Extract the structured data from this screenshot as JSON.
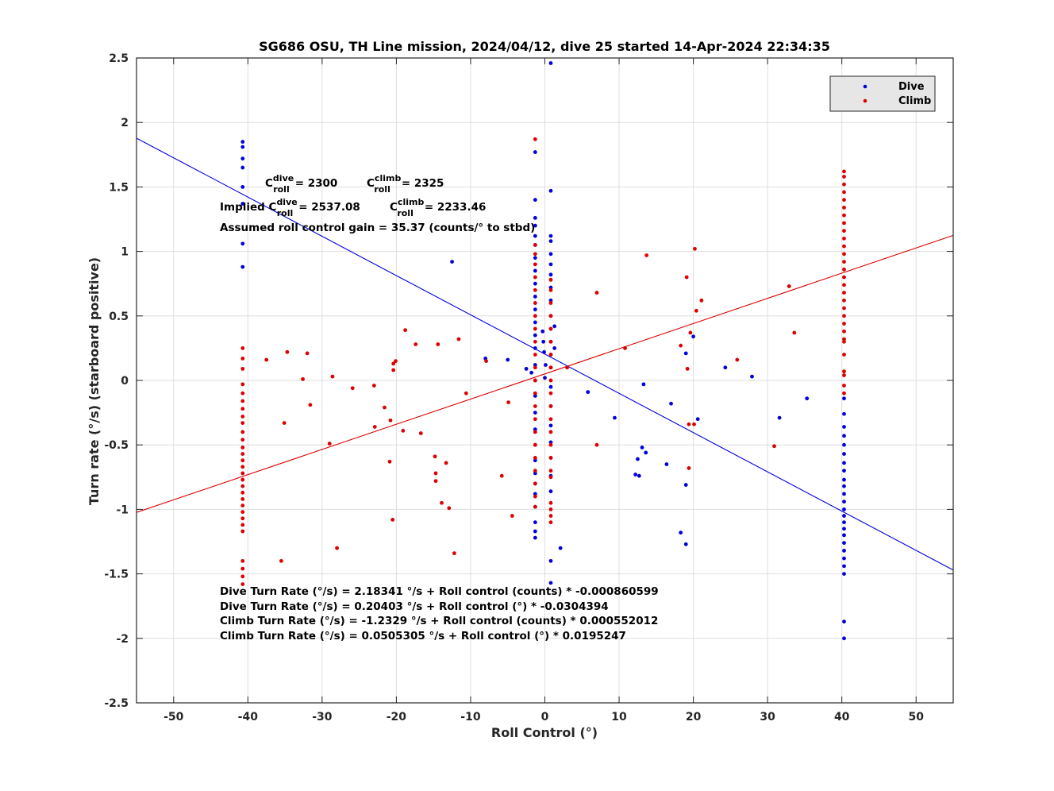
{
  "chart_data": {
    "type": "scatter",
    "title": "SG686 OSU, TH Line mission, 2024/04/12, dive 25 started 14-Apr-2024 22:34:35",
    "xlabel": "Roll Control (°)",
    "ylabel": "Turn rate (°/s) (starboard positive)",
    "xlim": [
      -55,
      55
    ],
    "ylim": [
      -2.5,
      2.5
    ],
    "xticks": [
      -50,
      -40,
      -30,
      -20,
      -10,
      0,
      10,
      20,
      30,
      40,
      50
    ],
    "yticks": [
      -2.5,
      -2,
      -1.5,
      -1,
      -0.5,
      0,
      0.5,
      1,
      1.5,
      2,
      2.5
    ],
    "grid": true,
    "legend_position": "top-right",
    "colors": {
      "dive": "#0000dd",
      "climb": "#dd0000"
    },
    "annotations": {
      "c_roll_dive": {
        "prefix": "C",
        "sup": "dive",
        "sub": "roll",
        "text": "= 2300"
      },
      "c_roll_climb": {
        "prefix": "C",
        "sup": "climb",
        "sub": "roll",
        "text": "= 2325"
      },
      "implied_dive": {
        "prefix": "Implied C",
        "sup": "dive",
        "sub": "roll",
        "text": "= 2537.08"
      },
      "implied_climb": {
        "prefix": "C",
        "sup": "climb",
        "sub": "roll",
        "text": "= 2233.46"
      },
      "gain": "Assumed roll control gain = 35.37 (counts/° to stbd)",
      "fits": [
        "Dive Turn Rate (°/s) = 2.18341 °/s + Roll control (counts) * -0.000860599",
        "Dive Turn Rate (°/s) = 0.20403 °/s + Roll control (°) * -0.0304394",
        "Climb Turn Rate (°/s) = -1.2329 °/s + Roll control (counts) * 0.000552012",
        "Climb Turn Rate (°/s) = 0.0505305 °/s + Roll control (°) * 0.0195247"
      ]
    },
    "fit_lines": [
      {
        "name": "Dive",
        "intercept": 0.20403,
        "slope": -0.0304394
      },
      {
        "name": "Climb",
        "intercept": 0.0505305,
        "slope": 0.0195247
      }
    ],
    "series": [
      {
        "name": "Dive",
        "points": [
          [
            -40.7,
            1.85
          ],
          [
            -40.7,
            1.81
          ],
          [
            -40.7,
            1.72
          ],
          [
            -40.7,
            1.65
          ],
          [
            -40.7,
            1.5
          ],
          [
            -40.7,
            1.37
          ],
          [
            -40.7,
            1.06
          ],
          [
            -40.7,
            0.88
          ],
          [
            -12.5,
            0.92
          ],
          [
            -8,
            0.17
          ],
          [
            -5,
            0.16
          ],
          [
            -2.5,
            0.09
          ],
          [
            -1.8,
            0.06
          ],
          [
            -1.3,
            1.77
          ],
          [
            -1.3,
            1.4
          ],
          [
            -1.3,
            1.26
          ],
          [
            -1.3,
            1.2
          ],
          [
            -1.3,
            1.12
          ],
          [
            -1.3,
            1.05
          ],
          [
            -1.3,
            0.95
          ],
          [
            -1.3,
            0.85
          ],
          [
            -1.3,
            0.75
          ],
          [
            -1.3,
            0.65
          ],
          [
            -1.3,
            0.55
          ],
          [
            -1.3,
            0.45
          ],
          [
            -1.3,
            0.35
          ],
          [
            -1.3,
            0.25
          ],
          [
            -1.3,
            0.12
          ],
          [
            -1.3,
            0.0
          ],
          [
            -1.3,
            -0.12
          ],
          [
            -1.3,
            -0.25
          ],
          [
            -1.3,
            -0.38
          ],
          [
            -1.3,
            -0.5
          ],
          [
            -1.3,
            -0.62
          ],
          [
            -1.3,
            -0.72
          ],
          [
            -1.3,
            -0.8
          ],
          [
            -1.3,
            -0.88
          ],
          [
            -1.3,
            -0.98
          ],
          [
            -1.3,
            -1.1
          ],
          [
            -1.3,
            -1.17
          ],
          [
            -1.3,
            -1.22
          ],
          [
            -0.3,
            0.38
          ],
          [
            -0.2,
            0.3
          ],
          [
            -0.1,
            0.22
          ],
          [
            0.1,
            0.12
          ],
          [
            0,
            0.02
          ],
          [
            0.8,
            2.46
          ],
          [
            0.8,
            1.47
          ],
          [
            0.8,
            1.12
          ],
          [
            0.8,
            1.08
          ],
          [
            0.8,
            0.98
          ],
          [
            0.8,
            0.9
          ],
          [
            0.8,
            0.82
          ],
          [
            0.8,
            0.72
          ],
          [
            0.8,
            0.62
          ],
          [
            0.8,
            0.5
          ],
          [
            0.8,
            0.4
          ],
          [
            0.8,
            0.3
          ],
          [
            0.8,
            0.2
          ],
          [
            0.8,
            0.1
          ],
          [
            0.8,
            -0.05
          ],
          [
            0.8,
            -0.2
          ],
          [
            0.8,
            -0.35
          ],
          [
            0.8,
            -0.48
          ],
          [
            0.8,
            -0.6
          ],
          [
            0.8,
            -0.74
          ],
          [
            0.8,
            -0.86
          ],
          [
            0.8,
            -1.4
          ],
          [
            0.8,
            -1.57
          ],
          [
            1.3,
            0.42
          ],
          [
            1.3,
            0.25
          ],
          [
            2.1,
            -1.3
          ],
          [
            5.8,
            -0.09
          ],
          [
            9.4,
            -0.29
          ],
          [
            12.2,
            -0.73
          ],
          [
            12.7,
            -0.74
          ],
          [
            12.5,
            -0.61
          ],
          [
            13.1,
            -0.52
          ],
          [
            13.3,
            -0.03
          ],
          [
            13.6,
            -0.56
          ],
          [
            16.4,
            -0.65
          ],
          [
            17,
            -0.18
          ],
          [
            18.3,
            -1.18
          ],
          [
            19,
            -1.27
          ],
          [
            19,
            -0.81
          ],
          [
            19,
            0.21
          ],
          [
            20,
            0.34
          ],
          [
            20.6,
            -0.3
          ],
          [
            24.3,
            0.1
          ],
          [
            27.9,
            0.03
          ],
          [
            31.6,
            -0.29
          ],
          [
            35.3,
            -0.14
          ],
          [
            40.3,
            -0.14
          ],
          [
            40.3,
            -0.26
          ],
          [
            40.3,
            -0.36
          ],
          [
            40.3,
            -0.43
          ],
          [
            40.3,
            -0.5
          ],
          [
            40.3,
            -0.57
          ],
          [
            40.3,
            -0.64
          ],
          [
            40.3,
            -0.7
          ],
          [
            40.3,
            -0.77
          ],
          [
            40.3,
            -0.82
          ],
          [
            40.3,
            -0.88
          ],
          [
            40.3,
            -0.94
          ],
          [
            40.3,
            -1.0
          ],
          [
            40.3,
            -1.05
          ],
          [
            40.3,
            -1.1
          ],
          [
            40.3,
            -1.15
          ],
          [
            40.3,
            -1.2
          ],
          [
            40.3,
            -1.26
          ],
          [
            40.3,
            -1.32
          ],
          [
            40.3,
            -1.38
          ],
          [
            40.3,
            -1.44
          ],
          [
            40.3,
            -1.5
          ],
          [
            40.3,
            -1.87
          ],
          [
            40.3,
            -2.0
          ]
        ]
      },
      {
        "name": "Climb",
        "points": [
          [
            -40.7,
            0.25
          ],
          [
            -40.7,
            0.17
          ],
          [
            -40.7,
            0.09
          ],
          [
            -40.7,
            -0.03
          ],
          [
            -40.7,
            -0.1
          ],
          [
            -40.7,
            -0.16
          ],
          [
            -40.7,
            -0.22
          ],
          [
            -40.7,
            -0.28
          ],
          [
            -40.7,
            -0.33
          ],
          [
            -40.7,
            -0.4
          ],
          [
            -40.7,
            -0.46
          ],
          [
            -40.7,
            -0.52
          ],
          [
            -40.7,
            -0.57
          ],
          [
            -40.7,
            -0.62
          ],
          [
            -40.7,
            -0.67
          ],
          [
            -40.7,
            -0.72
          ],
          [
            -40.7,
            -0.77
          ],
          [
            -40.7,
            -0.82
          ],
          [
            -40.7,
            -0.87
          ],
          [
            -40.7,
            -0.92
          ],
          [
            -40.7,
            -0.97
          ],
          [
            -40.7,
            -1.02
          ],
          [
            -40.7,
            -1.07
          ],
          [
            -40.7,
            -1.12
          ],
          [
            -40.7,
            -1.17
          ],
          [
            -40.7,
            -1.4
          ],
          [
            -40.7,
            -1.46
          ],
          [
            -40.7,
            -1.52
          ],
          [
            -40.7,
            -1.58
          ],
          [
            -37.5,
            0.16
          ],
          [
            -35.5,
            -1.4
          ],
          [
            -35.1,
            -0.33
          ],
          [
            -34.7,
            0.22
          ],
          [
            -32.6,
            0.01
          ],
          [
            -32,
            0.21
          ],
          [
            -31.6,
            -0.19
          ],
          [
            -29,
            -0.49
          ],
          [
            -28.6,
            0.03
          ],
          [
            -28,
            -1.3
          ],
          [
            -25.9,
            -0.06
          ],
          [
            -23,
            -0.04
          ],
          [
            -22.9,
            -0.36
          ],
          [
            -21.6,
            -0.21
          ],
          [
            -20.9,
            -0.63
          ],
          [
            -20.8,
            -0.31
          ],
          [
            -20.5,
            -1.08
          ],
          [
            -20.4,
            0.08
          ],
          [
            -20.1,
            0.15
          ],
          [
            -20.4,
            0.13
          ],
          [
            -19.1,
            -0.39
          ],
          [
            -18.8,
            0.39
          ],
          [
            -17.4,
            0.28
          ],
          [
            -16.7,
            -0.41
          ],
          [
            -14.8,
            -0.59
          ],
          [
            -14.7,
            -0.72
          ],
          [
            -14.7,
            -0.78
          ],
          [
            -14.4,
            0.28
          ],
          [
            -13.9,
            -0.95
          ],
          [
            -13.3,
            -0.64
          ],
          [
            -12.9,
            -0.99
          ],
          [
            -12.2,
            -1.34
          ],
          [
            -11.6,
            0.32
          ],
          [
            -10.6,
            -0.1
          ],
          [
            -7.9,
            0.15
          ],
          [
            -5.8,
            -0.74
          ],
          [
            -4.9,
            -0.17
          ],
          [
            -4.4,
            -1.05
          ],
          [
            -1.3,
            1.87
          ],
          [
            -1.3,
            1.05
          ],
          [
            -1.3,
            0.98
          ],
          [
            -1.3,
            0.9
          ],
          [
            -1.3,
            0.8
          ],
          [
            -1.3,
            0.7
          ],
          [
            -1.3,
            0.6
          ],
          [
            -1.3,
            0.5
          ],
          [
            -1.3,
            0.4
          ],
          [
            -1.3,
            0.3
          ],
          [
            -1.3,
            0.2
          ],
          [
            -1.3,
            0.1
          ],
          [
            -1.3,
            0.0
          ],
          [
            -1.3,
            -0.1
          ],
          [
            -1.3,
            -0.2
          ],
          [
            -1.3,
            -0.3
          ],
          [
            -1.3,
            -0.4
          ],
          [
            -1.3,
            -0.5
          ],
          [
            -1.3,
            -0.6
          ],
          [
            -1.3,
            -0.7
          ],
          [
            -1.3,
            -0.8
          ],
          [
            -1.3,
            -0.9
          ],
          [
            -1.3,
            -0.98
          ],
          [
            0.8,
            0.78
          ],
          [
            0.8,
            0.7
          ],
          [
            0.8,
            0.6
          ],
          [
            0.8,
            0.5
          ],
          [
            0.8,
            0.4
          ],
          [
            0.8,
            0.3
          ],
          [
            0.8,
            0.2
          ],
          [
            0.8,
            0.1
          ],
          [
            0.8,
            0.0
          ],
          [
            0.8,
            -0.1
          ],
          [
            0.8,
            -0.2
          ],
          [
            0.8,
            -0.3
          ],
          [
            0.8,
            -0.4
          ],
          [
            0.8,
            -0.5
          ],
          [
            0.8,
            -0.6
          ],
          [
            0.8,
            -0.7
          ],
          [
            0.8,
            -0.75
          ],
          [
            0.8,
            -0.95
          ],
          [
            0.8,
            -1.0
          ],
          [
            0.8,
            -1.05
          ],
          [
            0.8,
            -1.1
          ],
          [
            3,
            0.1
          ],
          [
            7,
            0.68
          ],
          [
            7,
            -0.5
          ],
          [
            10.8,
            0.25
          ],
          [
            13.7,
            0.97
          ],
          [
            18.3,
            0.27
          ],
          [
            19.1,
            0.8
          ],
          [
            19.2,
            0.09
          ],
          [
            19.4,
            -0.34
          ],
          [
            19.4,
            -0.68
          ],
          [
            19.6,
            0.37
          ],
          [
            20.1,
            -0.34
          ],
          [
            20.2,
            1.02
          ],
          [
            20.4,
            0.54
          ],
          [
            21.1,
            0.62
          ],
          [
            25.9,
            0.16
          ],
          [
            30.9,
            -0.51
          ],
          [
            32.9,
            0.73
          ],
          [
            33.6,
            0.37
          ],
          [
            40.3,
            1.62
          ],
          [
            40.3,
            1.58
          ],
          [
            40.3,
            1.52
          ],
          [
            40.3,
            1.46
          ],
          [
            40.3,
            1.4
          ],
          [
            40.3,
            1.34
          ],
          [
            40.3,
            1.28
          ],
          [
            40.3,
            1.22
          ],
          [
            40.3,
            1.16
          ],
          [
            40.3,
            1.1
          ],
          [
            40.3,
            1.04
          ],
          [
            40.3,
            0.98
          ],
          [
            40.3,
            0.92
          ],
          [
            40.3,
            0.86
          ],
          [
            40.3,
            0.8
          ],
          [
            40.3,
            0.74
          ],
          [
            40.3,
            0.68
          ],
          [
            40.3,
            0.62
          ],
          [
            40.3,
            0.56
          ],
          [
            40.3,
            0.5
          ],
          [
            40.3,
            0.44
          ],
          [
            40.3,
            0.38
          ],
          [
            40.3,
            0.32
          ],
          [
            40.3,
            0.3
          ],
          [
            40.3,
            0.2
          ],
          [
            40.3,
            0.07
          ],
          [
            40.3,
            0.04
          ],
          [
            40.3,
            -0.04
          ],
          [
            40.3,
            -0.1
          ]
        ]
      }
    ]
  }
}
